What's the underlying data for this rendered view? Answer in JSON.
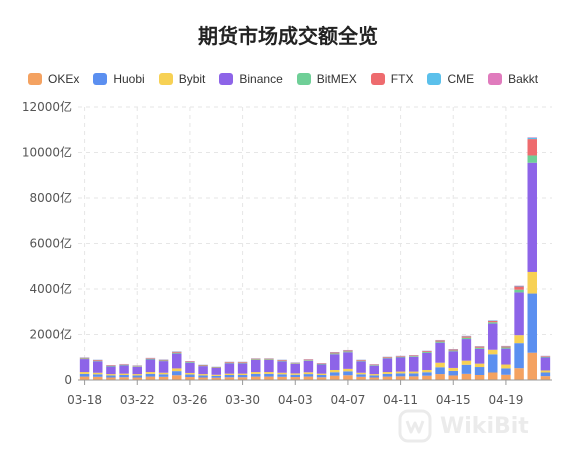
{
  "chart_data": {
    "type": "bar",
    "stacked": true,
    "title": "期货市场成交额全览",
    "yunit": "亿",
    "ylim": [
      0,
      12000
    ],
    "yticks": [
      "0",
      "2000亿",
      "4000亿",
      "6000亿",
      "8000亿",
      "10000亿",
      "12000亿"
    ],
    "xticks": [
      "03-18",
      "03-22",
      "03-26",
      "03-30",
      "04-03",
      "04-07",
      "04-11",
      "04-15",
      "04-19"
    ],
    "grid": true,
    "legend_position": "top-left",
    "categories": [
      "03-18",
      "03-19",
      "03-20",
      "03-21",
      "03-22",
      "03-23",
      "03-24",
      "03-25",
      "03-26",
      "03-27",
      "03-28",
      "03-29",
      "03-30",
      "03-31",
      "04-01",
      "04-02",
      "04-03",
      "04-04",
      "04-05",
      "04-06",
      "04-07",
      "04-08",
      "04-09",
      "04-10",
      "04-11",
      "04-12",
      "04-13",
      "04-14",
      "04-15",
      "04-16",
      "04-17",
      "04-18",
      "04-19",
      "04-20",
      "04-21",
      "04-22"
    ],
    "series": [
      {
        "name": "OKEx",
        "color": "#f4a261",
        "values": [
          150,
          140,
          110,
          120,
          110,
          150,
          140,
          210,
          130,
          110,
          100,
          120,
          120,
          150,
          150,
          140,
          130,
          150,
          120,
          190,
          210,
          140,
          110,
          150,
          160,
          160,
          190,
          260,
          200,
          270,
          220,
          330,
          230,
          520,
          1200,
          170
        ]
      },
      {
        "name": "Huobi",
        "color": "#5b8ff0",
        "values": [
          120,
          110,
          90,
          100,
          90,
          120,
          110,
          180,
          110,
          90,
          80,
          100,
          100,
          120,
          120,
          110,
          100,
          110,
          100,
          150,
          170,
          110,
          90,
          120,
          130,
          130,
          150,
          300,
          200,
          400,
          350,
          800,
          280,
          1100,
          2600,
          160
        ]
      },
      {
        "name": "Bybit",
        "color": "#f7d154",
        "values": [
          80,
          70,
          60,
          60,
          60,
          80,
          70,
          120,
          70,
          60,
          50,
          60,
          60,
          80,
          80,
          70,
          60,
          80,
          60,
          100,
          110,
          70,
          60,
          80,
          80,
          80,
          100,
          200,
          130,
          180,
          150,
          200,
          170,
          350,
          950,
          90
        ]
      },
      {
        "name": "Binance",
        "color": "#8d64e8",
        "values": [
          570,
          500,
          330,
          360,
          320,
          550,
          510,
          650,
          450,
          350,
          300,
          450,
          450,
          530,
          530,
          500,
          420,
          500,
          400,
          690,
          730,
          500,
          370,
          600,
          620,
          650,
          750,
          880,
          730,
          950,
          650,
          1150,
          700,
          1880,
          4800,
          570
        ]
      },
      {
        "name": "BitMEX",
        "color": "#6fcf97",
        "values": [
          30,
          30,
          25,
          25,
          25,
          30,
          30,
          40,
          30,
          25,
          20,
          30,
          30,
          30,
          30,
          30,
          25,
          30,
          25,
          40,
          40,
          30,
          25,
          30,
          30,
          30,
          40,
          50,
          40,
          60,
          50,
          60,
          50,
          120,
          320,
          30
        ]
      },
      {
        "name": "FTX",
        "color": "#ee6b6e",
        "values": [
          30,
          30,
          25,
          25,
          25,
          30,
          30,
          40,
          30,
          25,
          20,
          30,
          30,
          30,
          30,
          30,
          25,
          30,
          25,
          40,
          40,
          30,
          25,
          30,
          30,
          30,
          40,
          50,
          40,
          60,
          50,
          60,
          50,
          140,
          720,
          30
        ]
      },
      {
        "name": "CME",
        "color": "#5bc0eb",
        "values": [
          10,
          10,
          10,
          10,
          10,
          10,
          10,
          15,
          10,
          10,
          10,
          10,
          10,
          10,
          10,
          10,
          10,
          10,
          10,
          15,
          15,
          10,
          10,
          10,
          10,
          10,
          15,
          15,
          15,
          20,
          15,
          20,
          15,
          30,
          60,
          10
        ]
      },
      {
        "name": "Bakkt",
        "color": "#e07bbd",
        "values": [
          5,
          5,
          5,
          5,
          5,
          5,
          5,
          5,
          5,
          5,
          5,
          5,
          5,
          5,
          5,
          5,
          5,
          5,
          5,
          5,
          5,
          5,
          5,
          5,
          5,
          5,
          5,
          5,
          5,
          5,
          5,
          5,
          5,
          10,
          20,
          5
        ]
      }
    ]
  },
  "watermark": {
    "text": "WikiBit"
  }
}
